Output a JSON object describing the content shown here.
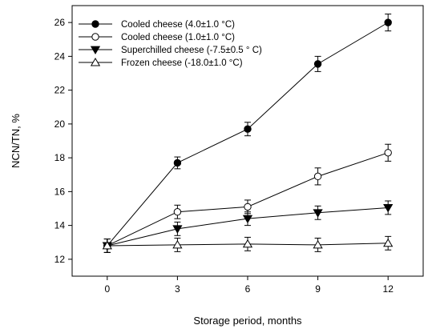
{
  "chart_data": {
    "type": "line",
    "title": "",
    "xlabel": "Storage period, months",
    "ylabel": "NCN/TN, %",
    "x": [
      0,
      3,
      6,
      9,
      12
    ],
    "xticks": [
      "0",
      "3",
      "6",
      "9",
      "12"
    ],
    "yticks": [
      "12",
      "14",
      "16",
      "18",
      "20",
      "22",
      "24",
      "26"
    ],
    "xlim": [
      -1.5,
      13.5
    ],
    "ylim": [
      11,
      27
    ],
    "grid": false,
    "legend_position": "top-left",
    "series": [
      {
        "name": "Cooled cheese (4.0±1.0 °C)",
        "marker": "circle",
        "filled": true,
        "values": [
          12.8,
          17.7,
          19.7,
          23.55,
          26.0
        ],
        "errors": [
          0.4,
          0.35,
          0.4,
          0.45,
          0.5
        ]
      },
      {
        "name": "Cooled cheese (1.0±1.0 °C)",
        "marker": "circle",
        "filled": false,
        "values": [
          12.8,
          14.8,
          15.1,
          16.9,
          18.3
        ],
        "errors": [
          0.4,
          0.4,
          0.4,
          0.5,
          0.5
        ]
      },
      {
        "name": "Superchilled cheese (-7.5±0.5 ° C)",
        "marker": "triangle-down",
        "filled": true,
        "values": [
          12.8,
          13.8,
          14.4,
          14.75,
          15.05
        ],
        "errors": [
          0.4,
          0.4,
          0.4,
          0.4,
          0.4
        ]
      },
      {
        "name": "Frozen cheese (-18.0±1.0 °C)",
        "marker": "triangle-up",
        "filled": false,
        "values": [
          12.8,
          12.85,
          12.9,
          12.85,
          12.95
        ],
        "errors": [
          0.4,
          0.4,
          0.4,
          0.4,
          0.4
        ]
      }
    ]
  }
}
